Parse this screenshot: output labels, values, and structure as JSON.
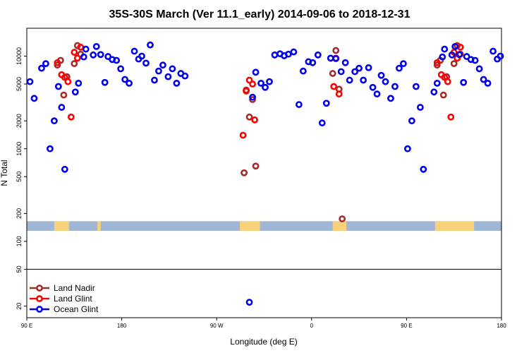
{
  "colors": {
    "land_nadir": "#a52a2a",
    "land_glint": "#ff0000",
    "ocean_glint": "#0000ee",
    "ocean_band": "#9fb6d6",
    "land_band": "#f7d27a"
  },
  "chart_data": {
    "type": "scatter",
    "title": "35S-30S March (Ver 11.1_early)   2014-09-06 to 2018-12-31",
    "xlabel": "Longitude (deg E)",
    "ylabel": "N Total",
    "yscale": "log",
    "xlim": [
      90,
      540
    ],
    "ylim": [
      15,
      20000
    ],
    "band_range": [
      130,
      165
    ],
    "divider_y": 50,
    "xticks": [
      {
        "value": 90,
        "label": "90 E"
      },
      {
        "value": 180,
        "label": "180"
      },
      {
        "value": 270,
        "label": "90 W"
      },
      {
        "value": 360,
        "label": "0"
      },
      {
        "value": 450,
        "label": "90 E"
      },
      {
        "value": 540,
        "label": "180"
      }
    ],
    "yticks": [
      {
        "value": 20,
        "label": "20"
      },
      {
        "value": 50,
        "label": "50"
      },
      {
        "value": 100,
        "label": "100"
      },
      {
        "value": 200,
        "label": "200"
      },
      {
        "value": 500,
        "label": "500"
      },
      {
        "value": 1000,
        "label": "1000"
      },
      {
        "value": 2000,
        "label": "2000"
      },
      {
        "value": 5000,
        "label": "5000"
      },
      {
        "value": 10000,
        "label": "10000"
      }
    ],
    "land_segments": [
      [
        116,
        130
      ],
      [
        157,
        160
      ],
      [
        292,
        311
      ],
      [
        380,
        393
      ],
      [
        477,
        514
      ]
    ],
    "legend": [
      {
        "name": "Land Nadir",
        "key": "land_nadir"
      },
      {
        "name": "Land Glint",
        "key": "land_glint"
      },
      {
        "name": "Ocean Glint",
        "key": "ocean_glint"
      }
    ],
    "series": [
      {
        "name": "Land Nadir",
        "key": "land_nadir",
        "points": [
          [
            119,
            8000
          ],
          [
            122,
            9000
          ],
          [
            125,
            3800
          ],
          [
            128,
            6000
          ],
          [
            135,
            8300
          ],
          [
            138,
            13000
          ],
          [
            141,
            10500
          ],
          [
            296,
            550
          ],
          [
            298,
            4300
          ],
          [
            301,
            2200
          ],
          [
            304,
            3400
          ],
          [
            307,
            650
          ],
          [
            380,
            6500
          ],
          [
            383,
            11500
          ],
          [
            386,
            4400
          ],
          [
            389,
            175
          ],
          [
            479,
            8000
          ],
          [
            482,
            9000
          ],
          [
            485,
            3800
          ],
          [
            488,
            6000
          ],
          [
            495,
            8300
          ],
          [
            498,
            13000
          ],
          [
            501,
            10500
          ]
        ]
      },
      {
        "name": "Land Glint",
        "key": "land_glint",
        "points": [
          [
            119,
            8500
          ],
          [
            123,
            6300
          ],
          [
            126,
            5900
          ],
          [
            129,
            5300
          ],
          [
            132,
            2200
          ],
          [
            135,
            11000
          ],
          [
            138,
            9500
          ],
          [
            141,
            12500
          ],
          [
            295,
            1400
          ],
          [
            298,
            4200
          ],
          [
            301,
            5500
          ],
          [
            304,
            5000
          ],
          [
            306,
            2050
          ],
          [
            381,
            4700
          ],
          [
            383,
            9500
          ],
          [
            386,
            3900
          ],
          [
            479,
            8500
          ],
          [
            483,
            6300
          ],
          [
            486,
            5900
          ],
          [
            489,
            5300
          ],
          [
            492,
            2200
          ],
          [
            495,
            11000
          ],
          [
            498,
            9500
          ],
          [
            501,
            12500
          ]
        ]
      },
      {
        "name": "Ocean Glint",
        "key": "ocean_glint",
        "points": [
          [
            93,
            5300
          ],
          [
            97,
            3500
          ],
          [
            104,
            7400
          ],
          [
            108,
            8300
          ],
          [
            112,
            1000
          ],
          [
            116,
            2000
          ],
          [
            120,
            4700
          ],
          [
            123,
            2800
          ],
          [
            126,
            600
          ],
          [
            136,
            4100
          ],
          [
            139,
            5100
          ],
          [
            144,
            9800
          ],
          [
            146,
            11900
          ],
          [
            153,
            10300
          ],
          [
            156,
            12700
          ],
          [
            160,
            10400
          ],
          [
            164,
            5200
          ],
          [
            167,
            9900
          ],
          [
            171,
            9200
          ],
          [
            175,
            9000
          ],
          [
            179,
            7300
          ],
          [
            183,
            5600
          ],
          [
            187,
            5100
          ],
          [
            192,
            11300
          ],
          [
            196,
            9300
          ],
          [
            199,
            10000
          ],
          [
            203,
            8400
          ],
          [
            207,
            13200
          ],
          [
            211,
            5500
          ],
          [
            215,
            6900
          ],
          [
            219,
            8000
          ],
          [
            224,
            6000
          ],
          [
            228,
            7300
          ],
          [
            232,
            5100
          ],
          [
            236,
            6500
          ],
          [
            240,
            6100
          ],
          [
            301,
            22
          ],
          [
            304,
            3600
          ],
          [
            307,
            6700
          ],
          [
            312,
            5100
          ],
          [
            316,
            4600
          ],
          [
            320,
            5300
          ],
          [
            325,
            10300
          ],
          [
            330,
            10600
          ],
          [
            334,
            10100
          ],
          [
            338,
            10500
          ],
          [
            343,
            11100
          ],
          [
            348,
            3000
          ],
          [
            352,
            6900
          ],
          [
            357,
            8700
          ],
          [
            361,
            8500
          ],
          [
            366,
            10300
          ],
          [
            370,
            1900
          ],
          [
            374,
            3100
          ],
          [
            378,
            9500
          ],
          [
            383,
            9400
          ],
          [
            388,
            6800
          ],
          [
            392,
            8500
          ],
          [
            396,
            5500
          ],
          [
            401,
            6800
          ],
          [
            405,
            7400
          ],
          [
            409,
            5500
          ],
          [
            414,
            7500
          ],
          [
            418,
            4600
          ],
          [
            422,
            3900
          ],
          [
            426,
            6200
          ],
          [
            430,
            5300
          ],
          [
            435,
            3500
          ],
          [
            439,
            4700
          ],
          [
            443,
            7400
          ],
          [
            447,
            8300
          ],
          [
            451,
            1000
          ],
          [
            455,
            2000
          ],
          [
            459,
            4700
          ],
          [
            463,
            2800
          ],
          [
            466,
            600
          ],
          [
            476,
            4100
          ],
          [
            479,
            5100
          ],
          [
            484,
            9800
          ],
          [
            486,
            11900
          ],
          [
            493,
            10300
          ],
          [
            496,
            12700
          ],
          [
            500,
            10400
          ],
          [
            504,
            5200
          ],
          [
            507,
            9900
          ],
          [
            511,
            9200
          ],
          [
            515,
            9000
          ],
          [
            519,
            7300
          ],
          [
            523,
            5600
          ],
          [
            527,
            5100
          ],
          [
            532,
            11300
          ],
          [
            536,
            9300
          ],
          [
            539,
            10000
          ]
        ]
      }
    ]
  }
}
